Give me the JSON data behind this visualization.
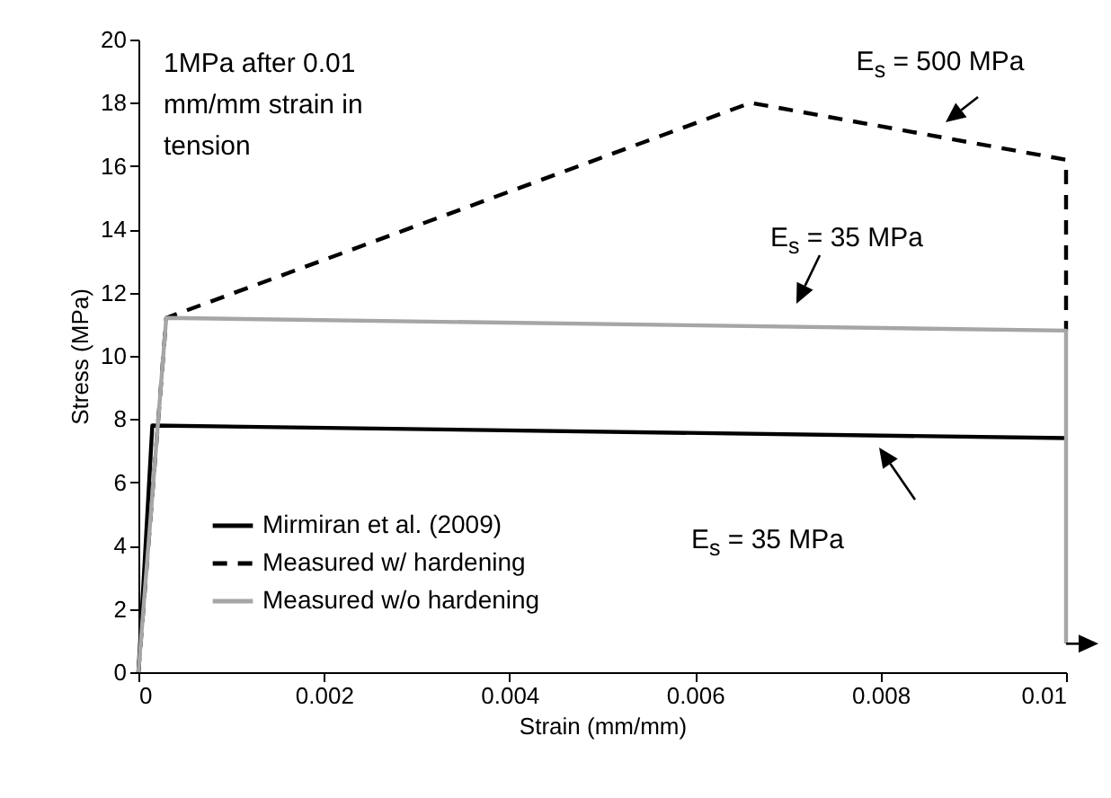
{
  "chart_data": {
    "type": "line",
    "xlabel": "Strain (mm/mm)",
    "ylabel": "Stress (MPa)",
    "xlim": [
      0,
      0.01
    ],
    "xticks": [
      0,
      0.002,
      0.004,
      0.006,
      0.008,
      0.01
    ],
    "ylim": [
      0,
      20
    ],
    "yticks": [
      0,
      2,
      4,
      6,
      8,
      10,
      12,
      14,
      16,
      18,
      20
    ],
    "grid": false,
    "legend": "bottom left",
    "marker": "none",
    "series": [
      {
        "name": "Mirmiran et al. (2009)",
        "color": "#000000",
        "line_style": "solid",
        "x": [
          0,
          0.00015,
          0.01
        ],
        "values": [
          0,
          7.8,
          7.4
        ]
      },
      {
        "name": "Measured w/ hardening",
        "color": "#000000",
        "line_style": "dashed",
        "x": [
          0,
          0.0003,
          0.0066,
          0.01,
          0.01
        ],
        "values": [
          0,
          11.2,
          18,
          16.2,
          10.8
        ]
      },
      {
        "name": "Measured w/o hardening",
        "color": "#a6a6a6",
        "line_style": "solid",
        "x": [
          0,
          0.0003,
          0.01,
          0.01
        ],
        "values": [
          0,
          11.2,
          10.8,
          0.9
        ]
      }
    ],
    "annotations": [
      "1MPa after 0.01 mm/mm strain in tension",
      "E$_{s}$ = 500 MPa",
      "E$_{s}$ = 35 MPa",
      "E$_{s}$ = 35 MPa"
    ]
  }
}
